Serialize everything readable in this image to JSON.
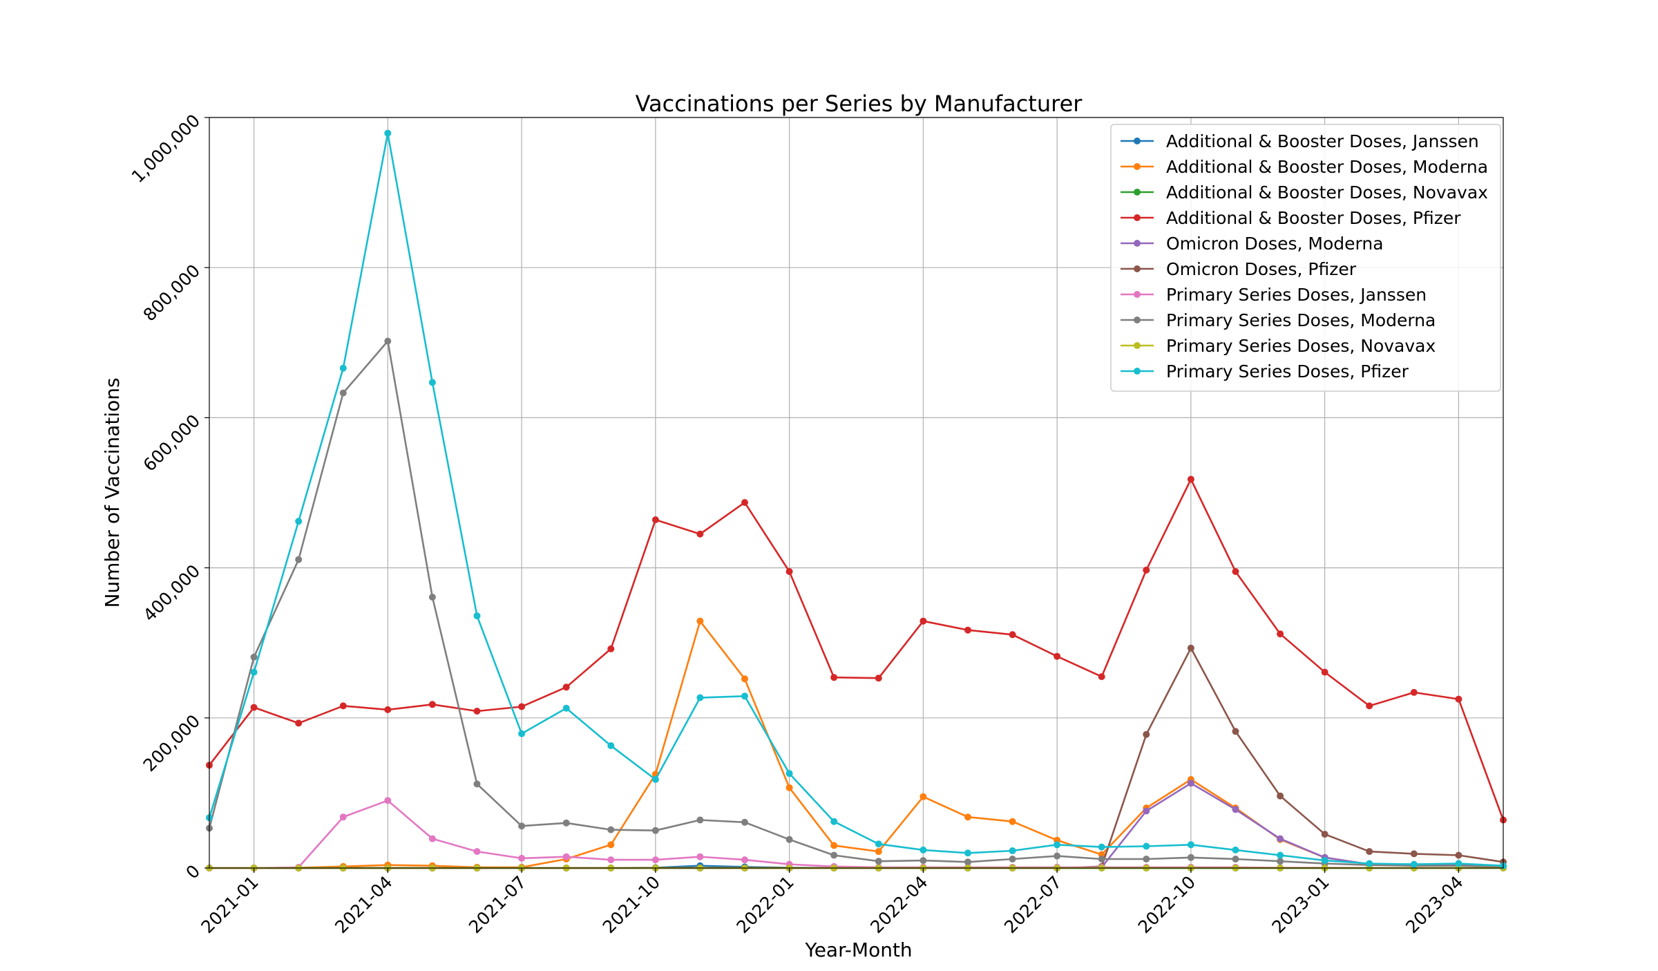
{
  "chart_data": {
    "type": "line",
    "title": "Vaccinations per Series by Manufacturer",
    "xlabel": "Year-Month",
    "ylabel": "Number of Vaccinations",
    "ylim": [
      0,
      1000000
    ],
    "xlim": [
      "2020-12-01",
      "2023-05-01"
    ],
    "grid": true,
    "legend_position": "top-right",
    "x": [
      "2020-12",
      "2021-01",
      "2021-02",
      "2021-03",
      "2021-04",
      "2021-05",
      "2021-06",
      "2021-07",
      "2021-08",
      "2021-09",
      "2021-10",
      "2021-11",
      "2021-12",
      "2022-01",
      "2022-02",
      "2022-03",
      "2022-04",
      "2022-05",
      "2022-06",
      "2022-07",
      "2022-08",
      "2022-09",
      "2022-10",
      "2022-11",
      "2022-12",
      "2023-01",
      "2023-02",
      "2023-03",
      "2023-04",
      "2023-05"
    ],
    "x_ticks": [
      "2021-01",
      "2021-04",
      "2021-07",
      "2021-10",
      "2022-01",
      "2022-04",
      "2022-07",
      "2022-10",
      "2023-01",
      "2023-04"
    ],
    "y_ticks": [
      0,
      200000,
      400000,
      600000,
      800000,
      1000000
    ],
    "y_tick_labels": [
      "0",
      "200,000",
      "400,000",
      "600,000",
      "800,000",
      "1,000,000"
    ],
    "series": [
      {
        "name": "Additional & Booster Doses, Janssen",
        "color": "#1f77b4",
        "values": [
          0,
          0,
          0,
          0,
          0,
          0,
          0,
          0,
          0,
          0,
          500,
          3000,
          1500,
          500,
          200,
          100,
          100,
          100,
          100,
          100,
          100,
          100,
          100,
          100,
          100,
          100,
          100,
          100,
          100,
          100
        ]
      },
      {
        "name": "Additional & Booster Doses, Moderna",
        "color": "#ff7f0e",
        "values": [
          0,
          0,
          500,
          2000,
          4000,
          3000,
          1000,
          1000,
          12000,
          31000,
          125000,
          329000,
          252000,
          107000,
          30000,
          22000,
          95000,
          68000,
          62000,
          37000,
          18000,
          80000,
          118000,
          80000,
          38000,
          14000,
          5000,
          3000,
          4000,
          1000
        ]
      },
      {
        "name": "Additional & Booster Doses, Novavax",
        "color": "#2ca02c",
        "values": [
          0,
          0,
          0,
          0,
          0,
          0,
          0,
          0,
          0,
          0,
          0,
          0,
          0,
          0,
          0,
          0,
          0,
          0,
          0,
          0,
          0,
          0,
          0,
          0,
          0,
          0,
          0,
          0,
          0,
          0
        ]
      },
      {
        "name": "Additional & Booster Doses, Pfizer",
        "color": "#d62728",
        "values": [
          137000,
          214000,
          193000,
          216000,
          211000,
          218000,
          209000,
          215000,
          241000,
          292000,
          464000,
          445000,
          487000,
          395000,
          254000,
          253000,
          329000,
          317000,
          311000,
          282000,
          255000,
          397000,
          518000,
          395000,
          312000,
          261000,
          216000,
          234000,
          225000,
          64000
        ]
      },
      {
        "name": "Omicron Doses, Moderna",
        "color": "#9467bd",
        "values": [
          0,
          0,
          0,
          0,
          0,
          0,
          0,
          0,
          0,
          0,
          0,
          0,
          0,
          0,
          0,
          0,
          0,
          0,
          0,
          0,
          1000,
          76000,
          113000,
          78000,
          39000,
          14000,
          5000,
          3000,
          4000,
          1000
        ]
      },
      {
        "name": "Omicron Doses, Pfizer",
        "color": "#8c564b",
        "values": [
          0,
          0,
          0,
          0,
          0,
          0,
          0,
          0,
          0,
          0,
          0,
          0,
          0,
          0,
          0,
          0,
          0,
          0,
          0,
          0,
          2000,
          178000,
          293000,
          182000,
          96000,
          45000,
          22000,
          19000,
          17000,
          8000
        ]
      },
      {
        "name": "Primary Series Doses, Janssen",
        "color": "#e377c2",
        "values": [
          0,
          0,
          1000,
          68000,
          90000,
          39000,
          22000,
          13000,
          15000,
          11000,
          11000,
          15000,
          11000,
          5000,
          2000,
          1000,
          1000,
          1000,
          1000,
          1000,
          1000,
          1000,
          1000,
          1000,
          500,
          500,
          200,
          200,
          100,
          100
        ]
      },
      {
        "name": "Primary Series Doses, Moderna",
        "color": "#7f7f7f",
        "values": [
          53000,
          281000,
          411000,
          633000,
          702000,
          361000,
          112000,
          56000,
          60000,
          51000,
          50000,
          64000,
          61000,
          38000,
          17000,
          9000,
          10000,
          8000,
          12000,
          16000,
          12000,
          12000,
          14000,
          12000,
          9000,
          6000,
          4000,
          3000,
          3000,
          2000
        ]
      },
      {
        "name": "Primary Series Doses, Novavax",
        "color": "#bcbd22",
        "values": [
          0,
          0,
          0,
          0,
          0,
          0,
          0,
          0,
          0,
          0,
          0,
          0,
          0,
          0,
          0,
          0,
          0,
          0,
          0,
          0,
          0,
          0,
          0,
          0,
          0,
          0,
          0,
          0,
          0,
          0
        ]
      },
      {
        "name": "Primary Series Doses, Pfizer",
        "color": "#17becf",
        "values": [
          67000,
          261000,
          462000,
          666000,
          979000,
          647000,
          336000,
          179000,
          213000,
          163000,
          118000,
          227000,
          229000,
          126000,
          62000,
          32000,
          24000,
          20000,
          23000,
          31000,
          28000,
          29000,
          31000,
          24000,
          17000,
          10000,
          6000,
          5000,
          6000,
          3000
        ]
      }
    ]
  }
}
